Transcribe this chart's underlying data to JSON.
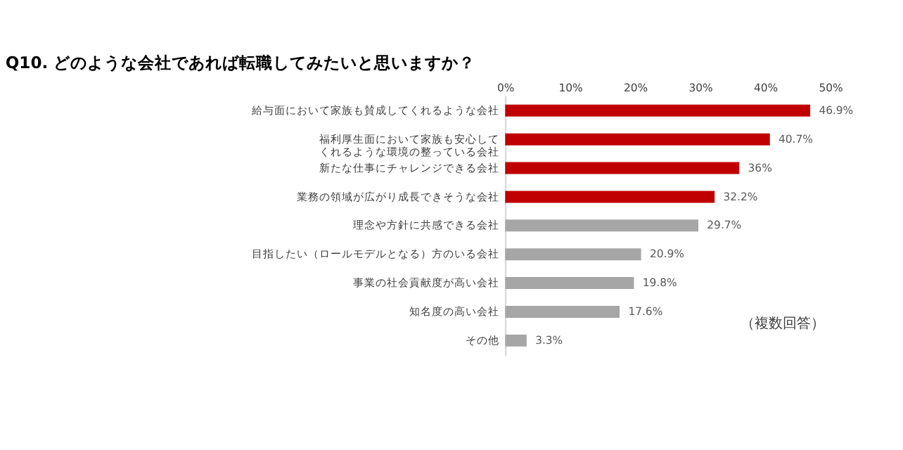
{
  "chart_data": {
    "type": "bar",
    "orientation": "horizontal",
    "title": "Q10. どのような会社であれば転職してみたいと思いますか？",
    "categories": [
      "給与面において家族も賛成してくれるような会社",
      "福利厚生面において家族も安心してくれるような環境の整っている会社",
      "新たな仕事にチャレンジできる会社",
      "業務の領域が広がり成長できそうな会社",
      "理念や方針に共感できる会社",
      "目指したい（ロールモデルとなる）方のいる会社",
      "事業の社会貢献度が高い会社",
      "知名度の高い会社",
      "その他"
    ],
    "values": [
      46.9,
      40.7,
      36,
      32.2,
      29.7,
      20.9,
      19.8,
      17.6,
      3.3
    ],
    "colors": [
      "#c00000",
      "#c00000",
      "#c00000",
      "#c00000",
      "#a6a6a6",
      "#a6a6a6",
      "#a6a6a6",
      "#a6a6a6",
      "#a6a6a6"
    ],
    "value_labels": [
      "46.9%",
      "40.7%",
      "36%",
      "32.2%",
      "29.7%",
      "20.9%",
      "19.8%",
      "17.6%",
      "3.3%"
    ],
    "xlim": [
      0,
      50
    ],
    "xticks": [
      {
        "value": 0,
        "label": "0%"
      },
      {
        "value": 10,
        "label": "10%"
      },
      {
        "value": 20,
        "label": "20%"
      },
      {
        "value": 30,
        "label": "30%"
      },
      {
        "value": 40,
        "label": "40%"
      },
      {
        "value": 50,
        "label": "50%"
      }
    ],
    "grid": false,
    "annotations": [
      "（複数回答）"
    ]
  }
}
